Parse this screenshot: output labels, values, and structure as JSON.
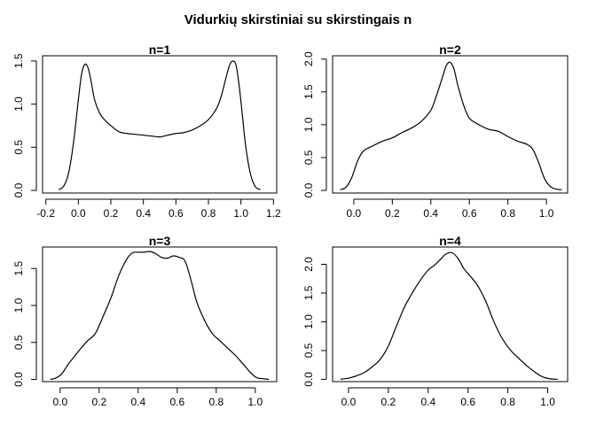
{
  "chart_title": "Vidurkių skirstiniai su skirstingais n",
  "chart_data": [
    {
      "type": "line",
      "title": "n=1",
      "xlim": [
        -0.22,
        1.22
      ],
      "ylim": [
        -0.03,
        1.56
      ],
      "x_ticks": [
        -0.2,
        0.0,
        0.2,
        0.4,
        0.6,
        0.8,
        1.0,
        1.2
      ],
      "x_tick_labels": [
        "-0.2",
        "0.0",
        "0.2",
        "0.4",
        "0.6",
        "0.8",
        "1.0",
        "1.2"
      ],
      "y_ticks": [
        0,
        0.5,
        1.0,
        1.5
      ],
      "y_tick_labels": [
        "0.0",
        "0.5",
        "1.0",
        "1.5"
      ],
      "series": [
        {
          "x": [
            -0.12,
            -0.09,
            -0.06,
            -0.03,
            0.0,
            0.02,
            0.04,
            0.06,
            0.08,
            0.1,
            0.13,
            0.16,
            0.2,
            0.25,
            0.3,
            0.35,
            0.4,
            0.45,
            0.5,
            0.55,
            0.6,
            0.65,
            0.7,
            0.75,
            0.8,
            0.85,
            0.88,
            0.91,
            0.93,
            0.95,
            0.97,
            0.99,
            1.01,
            1.03,
            1.06,
            1.09,
            1.12
          ],
          "y": [
            0.01,
            0.05,
            0.2,
            0.55,
            1.05,
            1.35,
            1.46,
            1.42,
            1.25,
            1.05,
            0.9,
            0.82,
            0.75,
            0.68,
            0.66,
            0.65,
            0.64,
            0.63,
            0.62,
            0.64,
            0.66,
            0.67,
            0.7,
            0.75,
            0.82,
            0.95,
            1.1,
            1.32,
            1.45,
            1.5,
            1.45,
            1.2,
            0.85,
            0.5,
            0.18,
            0.04,
            0.01
          ]
        }
      ]
    },
    {
      "type": "line",
      "title": "n=2",
      "xlim": [
        -0.11,
        1.11
      ],
      "ylim": [
        -0.04,
        2.05
      ],
      "x_ticks": [
        0.0,
        0.2,
        0.4,
        0.6,
        0.8,
        1.0
      ],
      "x_tick_labels": [
        "0.0",
        "0.2",
        "0.4",
        "0.6",
        "0.8",
        "1.0"
      ],
      "y_ticks": [
        0,
        0.5,
        1.0,
        1.5,
        2.0
      ],
      "y_tick_labels": [
        "0.0",
        "0.5",
        "1.0",
        "1.5",
        "2.0"
      ],
      "series": [
        {
          "x": [
            -0.07,
            -0.04,
            -0.01,
            0.02,
            0.05,
            0.1,
            0.15,
            0.2,
            0.25,
            0.3,
            0.35,
            0.4,
            0.43,
            0.46,
            0.48,
            0.5,
            0.52,
            0.54,
            0.57,
            0.6,
            0.65,
            0.7,
            0.75,
            0.8,
            0.85,
            0.9,
            0.93,
            0.96,
            0.99,
            1.02,
            1.05,
            1.08
          ],
          "y": [
            0.01,
            0.05,
            0.2,
            0.45,
            0.6,
            0.68,
            0.75,
            0.8,
            0.88,
            0.95,
            1.05,
            1.22,
            1.45,
            1.72,
            1.9,
            1.95,
            1.85,
            1.6,
            1.3,
            1.1,
            1.0,
            0.93,
            0.9,
            0.82,
            0.75,
            0.7,
            0.62,
            0.42,
            0.18,
            0.06,
            0.02,
            0.01
          ]
        }
      ]
    },
    {
      "type": "line",
      "title": "n=3",
      "xlim": [
        -0.09,
        1.11
      ],
      "ylim": [
        -0.03,
        1.79
      ],
      "x_ticks": [
        0.0,
        0.2,
        0.4,
        0.6,
        0.8,
        1.0
      ],
      "x_tick_labels": [
        "0.0",
        "0.2",
        "0.4",
        "0.6",
        "0.8",
        "1.0"
      ],
      "y_ticks": [
        0,
        0.5,
        1.0,
        1.5
      ],
      "y_tick_labels": [
        "0.0",
        "0.5",
        "1.0",
        "1.5"
      ],
      "series": [
        {
          "x": [
            -0.05,
            -0.02,
            0.01,
            0.04,
            0.07,
            0.1,
            0.14,
            0.18,
            0.22,
            0.26,
            0.3,
            0.34,
            0.37,
            0.4,
            0.43,
            0.46,
            0.49,
            0.52,
            0.55,
            0.58,
            0.61,
            0.64,
            0.67,
            0.7,
            0.74,
            0.78,
            0.82,
            0.86,
            0.9,
            0.94,
            0.98,
            1.01,
            1.04,
            1.07
          ],
          "y": [
            0.0,
            0.02,
            0.08,
            0.2,
            0.3,
            0.4,
            0.52,
            0.62,
            0.85,
            1.1,
            1.4,
            1.62,
            1.71,
            1.72,
            1.72,
            1.73,
            1.7,
            1.65,
            1.64,
            1.67,
            1.65,
            1.6,
            1.35,
            1.05,
            0.8,
            0.62,
            0.52,
            0.42,
            0.32,
            0.2,
            0.08,
            0.02,
            0.01,
            0.0
          ]
        }
      ]
    },
    {
      "type": "line",
      "title": "n=4",
      "xlim": [
        -0.08,
        1.1
      ],
      "ylim": [
        -0.04,
        2.3
      ],
      "x_ticks": [
        0.0,
        0.2,
        0.4,
        0.6,
        0.8,
        1.0
      ],
      "x_tick_labels": [
        "0.0",
        "0.2",
        "0.4",
        "0.6",
        "0.8",
        "1.0"
      ],
      "y_ticks": [
        0,
        0.5,
        1.0,
        1.5,
        2.0
      ],
      "y_tick_labels": [
        "0.0",
        "0.5",
        "1.0",
        "1.5",
        "2.0"
      ],
      "series": [
        {
          "x": [
            -0.04,
            0.0,
            0.04,
            0.08,
            0.12,
            0.16,
            0.2,
            0.24,
            0.28,
            0.32,
            0.36,
            0.4,
            0.43,
            0.46,
            0.49,
            0.52,
            0.55,
            0.58,
            0.61,
            0.65,
            0.69,
            0.73,
            0.77,
            0.81,
            0.85,
            0.89,
            0.93,
            0.97,
            1.01,
            1.05
          ],
          "y": [
            0.0,
            0.02,
            0.06,
            0.12,
            0.22,
            0.35,
            0.58,
            0.92,
            1.25,
            1.5,
            1.72,
            1.9,
            1.98,
            2.08,
            2.18,
            2.2,
            2.1,
            1.92,
            1.8,
            1.62,
            1.35,
            1.0,
            0.72,
            0.52,
            0.38,
            0.25,
            0.14,
            0.05,
            0.01,
            0.0
          ]
        }
      ]
    }
  ]
}
